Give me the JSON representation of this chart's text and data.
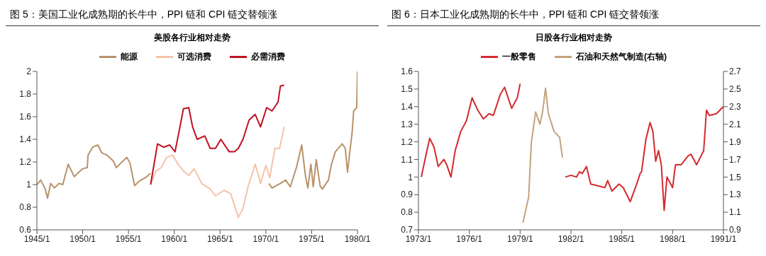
{
  "chart_data": [
    {
      "type": "line",
      "title": "图 5：美国工业化成熟期的长牛中，PPI 链和 CPI 链交替领涨",
      "subtitle": "美股各行业相对走势",
      "legend": "top",
      "grid": false,
      "xlim": [
        "1945-01",
        "1980-01"
      ],
      "xticks": [
        {
          "value": "1945-01",
          "label": "1945/1"
        },
        {
          "value": "1950-01",
          "label": "1950/1"
        },
        {
          "value": "1955-01",
          "label": "1955/1"
        },
        {
          "value": "1960-01",
          "label": "1960/1"
        },
        {
          "value": "1965-01",
          "label": "1965/1"
        },
        {
          "value": "1970-01",
          "label": "1970/1"
        },
        {
          "value": "1975-01",
          "label": "1975/1"
        },
        {
          "value": "1980-01",
          "label": "1980/1"
        }
      ],
      "ylim": [
        0.6,
        2
      ],
      "yticks": [
        0.6,
        0.8,
        1,
        1.2,
        1.4,
        1.6,
        1.8,
        2
      ],
      "series": [
        {
          "name": "能源",
          "color": "#b8926a",
          "x": [
            "1945-01",
            "1945-06",
            "1945-12",
            "1946-03",
            "1946-07",
            "1946-12",
            "1947-06",
            "1947-11",
            "1948-02",
            "1948-06",
            "1948-11",
            "1949-02",
            "1949-08",
            "1950-01",
            "1950-07",
            "1950-08",
            "1951-02",
            "1951-09",
            "1952-02",
            "1952-09",
            "1953-05",
            "1953-09",
            "1954-03",
            "1954-11",
            "1955-03",
            "1955-09",
            "1956-03",
            "1956-11",
            "1957-06",
            "1964-01",
            "1970-05",
            "1970-09",
            "1971-08",
            "1972-03",
            "1972-09",
            "1973-05",
            "1973-12",
            "1974-05",
            "1974-08",
            "1974-12",
            "1975-03",
            "1975-07",
            "1975-12",
            "1976-03",
            "1976-11",
            "1977-03",
            "1977-08",
            "1978-05",
            "1978-09",
            "1978-12",
            "1979-03",
            "1979-06",
            "1979-08",
            "1979-12",
            "1980-01"
          ],
          "values": [
            1,
            1.04,
            0.96,
            0.88,
            1.01,
            0.97,
            1.01,
            1,
            1.08,
            1.18,
            1.11,
            1.07,
            1.11,
            1.14,
            1.15,
            1.26,
            1.33,
            1.35,
            1.28,
            1.26,
            1.21,
            1.15,
            1.19,
            1.24,
            1.19,
            0.99,
            1.03,
            1.06,
            1.1,
            null,
            1.01,
            0.97,
            1.01,
            1.04,
            0.98,
            1.15,
            1.35,
            1.07,
            0.97,
            1.18,
            0.98,
            1.22,
            0.99,
            0.96,
            1.04,
            1.18,
            1.29,
            1.36,
            1.32,
            1.11,
            1.29,
            1.46,
            1.65,
            1.68,
            2
          ]
        },
        {
          "name": "可选消费",
          "color": "#f4c3a8",
          "x": [
            "1957-06",
            "1958-01",
            "1958-08",
            "1959-03",
            "1959-11",
            "1960-06",
            "1961-01",
            "1961-08",
            "1962-03",
            "1963-01",
            "1963-12",
            "1964-07",
            "1965-06",
            "1966-03",
            "1966-08",
            "1967-01",
            "1967-07",
            "1968-02",
            "1968-11",
            "1969-06",
            "1970-01",
            "1970-06",
            "1971-01",
            "1971-07",
            "1972-01"
          ],
          "values": [
            1,
            1.12,
            1.15,
            1.24,
            1.26,
            1.18,
            1.12,
            1.08,
            1.14,
            1.01,
            0.96,
            0.9,
            0.95,
            0.92,
            0.81,
            0.71,
            0.79,
            0.99,
            1.18,
            1.01,
            1.17,
            1.06,
            1.32,
            1.32,
            1.51
          ]
        },
        {
          "name": "必需消费",
          "color": "#c0101f",
          "x": [
            "1957-06",
            "1958-03",
            "1958-11",
            "1959-07",
            "1960-02",
            "1960-07",
            "1961-01",
            "1961-08",
            "1962-01",
            "1962-07",
            "1963-05",
            "1963-12",
            "1964-07",
            "1965-02",
            "1966-01",
            "1966-08",
            "1967-01",
            "1967-07",
            "1968-03",
            "1968-11",
            "1969-06",
            "1970-02",
            "1970-09",
            "1971-05",
            "1971-08",
            "1972-01"
          ],
          "values": [
            1,
            1.36,
            1.33,
            1.35,
            1.29,
            1.46,
            1.67,
            1.68,
            1.51,
            1.4,
            1.43,
            1.32,
            1.32,
            1.4,
            1.29,
            1.29,
            1.32,
            1.4,
            1.57,
            1.62,
            1.51,
            1.68,
            1.65,
            1.73,
            1.87,
            1.88
          ]
        }
      ]
    },
    {
      "type": "line",
      "title": "图 6：日本工业化成熟期的长牛中，PPI 链和 CPI 链交替领涨",
      "subtitle": "日股各行业相对走势",
      "legend": "top",
      "grid": false,
      "xlim": [
        "1973-01",
        "1991-01"
      ],
      "xticks": [
        {
          "value": "1973-01",
          "label": "1973/1"
        },
        {
          "value": "1976-01",
          "label": "1976/1"
        },
        {
          "value": "1979-01",
          "label": "1979/1"
        },
        {
          "value": "1982-01",
          "label": "1982/1"
        },
        {
          "value": "1985-01",
          "label": "1985/1"
        },
        {
          "value": "1988-01",
          "label": "1988/1"
        },
        {
          "value": "1991-01",
          "label": "1991/1"
        }
      ],
      "ylim": [
        0.7,
        1.6
      ],
      "yticks": [
        0.7,
        0.8,
        0.9,
        1,
        1.1,
        1.2,
        1.3,
        1.4,
        1.5,
        1.6
      ],
      "y2lim": [
        0.9,
        2.7
      ],
      "y2ticks": [
        0.9,
        1.1,
        1.3,
        1.5,
        1.7,
        1.9,
        2.1,
        2.3,
        2.5,
        2.7
      ],
      "series": [
        {
          "name": "一般零售",
          "color": "#d42a2f",
          "x": [
            "1973-03",
            "1973-07",
            "1973-09",
            "1973-12",
            "1974-03",
            "1974-07",
            "1974-09",
            "1974-12",
            "1975-03",
            "1975-07",
            "1975-11",
            "1976-03",
            "1976-07",
            "1976-11",
            "1977-03",
            "1977-06",
            "1977-11",
            "1978-02",
            "1978-07",
            "1978-11",
            "1979-01",
            "1980-07",
            "1981-09",
            "1982-01",
            "1982-05",
            "1982-07",
            "1982-09",
            "1982-12",
            "1983-03",
            "1983-08",
            "1984-01",
            "1984-03",
            "1984-06",
            "1984-11",
            "1985-02",
            "1985-07",
            "1985-12",
            "1986-02",
            "1986-03",
            "1986-06",
            "1986-09",
            "1986-11",
            "1987-01",
            "1987-03",
            "1987-05",
            "1987-07",
            "1987-09",
            "1988-01",
            "1988-03",
            "1988-07",
            "1988-12",
            "1989-02",
            "1989-06",
            "1989-11",
            "1990-01",
            "1990-03",
            "1990-08",
            "1991-01"
          ],
          "values": [
            1,
            1.15,
            1.22,
            1.17,
            1.06,
            1.1,
            1.07,
            1,
            1.15,
            1.26,
            1.32,
            1.45,
            1.38,
            1.33,
            1.36,
            1.35,
            1.47,
            1.51,
            1.39,
            1.45,
            1.53,
            null,
            1,
            1.01,
            1,
            1.03,
            1.02,
            1.06,
            0.96,
            0.95,
            0.94,
            0.98,
            0.92,
            0.96,
            0.94,
            0.86,
            0.97,
            1.02,
            1.03,
            1.21,
            1.31,
            1.26,
            1.09,
            1.15,
            1.07,
            0.81,
            1,
            0.94,
            1.07,
            1.07,
            1.12,
            1.13,
            1.07,
            1.15,
            1.38,
            1.35,
            1.36,
            1.4
          ]
        },
        {
          "name": "石油和天然气制造(右轴)",
          "color": "#c4a27c",
          "axis": "y2",
          "x": [
            "1979-03",
            "1979-07",
            "1979-09",
            "1979-12",
            "1980-03",
            "1980-05",
            "1980-07",
            "1980-09",
            "1981-01",
            "1981-05",
            "1981-07"
          ],
          "values": [
            0.98,
            1.27,
            1.9,
            2.24,
            2.1,
            2.25,
            2.51,
            2.22,
            2.02,
            1.95,
            1.72
          ]
        }
      ]
    }
  ]
}
